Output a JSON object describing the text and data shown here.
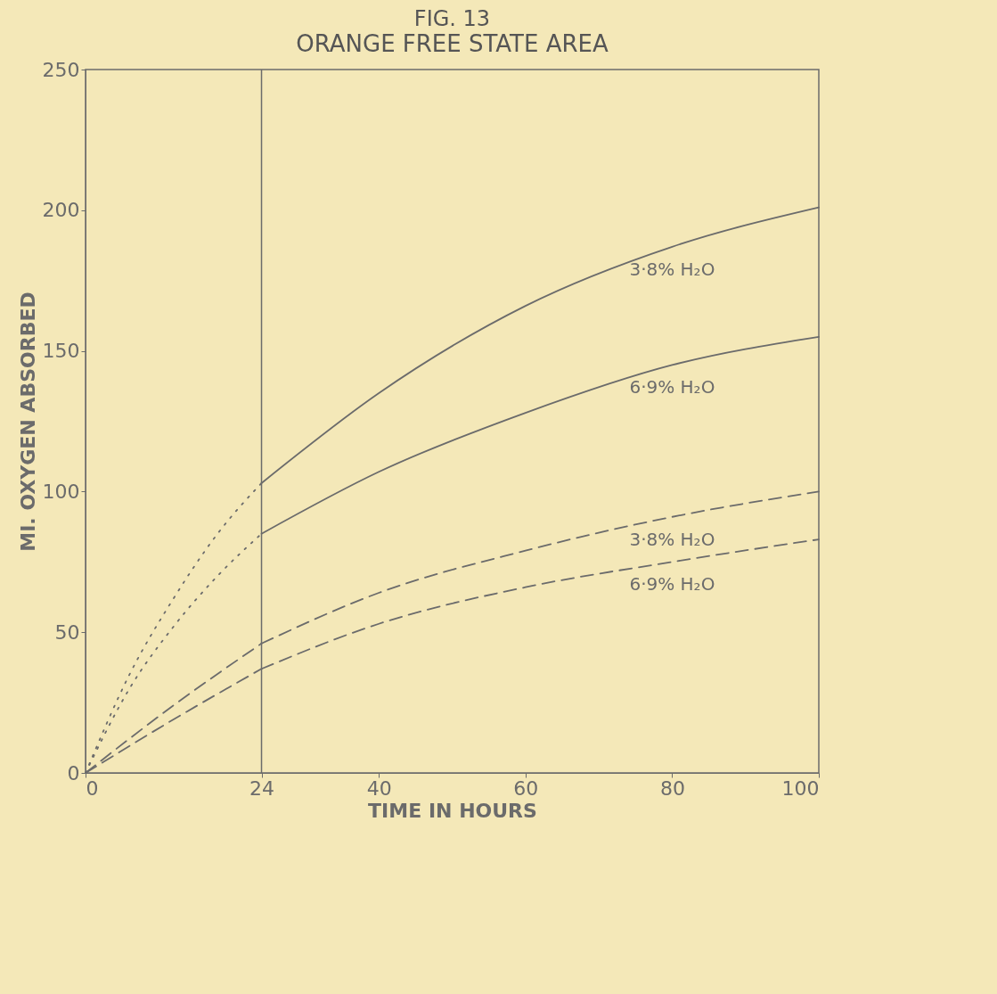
{
  "chart_data": {
    "type": "line",
    "title": "FIG. 13",
    "subtitle": "ORANGE FREE STATE AREA",
    "xlabel": "TIME IN HOURS",
    "ylabel": "MI. OXYGEN ABSORBED",
    "xlim": [
      0,
      100
    ],
    "ylim": [
      0,
      250
    ],
    "xticks": [
      0,
      24,
      40,
      60,
      80,
      100
    ],
    "yticks": [
      0,
      50,
      100,
      150,
      200,
      250
    ],
    "grid": false,
    "marker": "none",
    "ref_lines": [
      {
        "axis": "x",
        "value": 24,
        "color": "#6b6b6b"
      }
    ],
    "series": [
      {
        "name": "3·8% H₂O",
        "color": "#6b6b6b",
        "line_style": "solid",
        "x": [
          24,
          40,
          60,
          80,
          100
        ],
        "values": [
          103,
          135,
          166,
          187,
          201
        ]
      },
      {
        "name": "6·9% H₂O",
        "color": "#6b6b6b",
        "line_style": "solid",
        "x": [
          24,
          40,
          60,
          80,
          100
        ],
        "values": [
          85,
          107,
          128,
          145,
          155
        ]
      },
      {
        "name": "3·8% H₂O",
        "color": "#6b6b6b",
        "line_style": "dashed",
        "x": [
          24,
          40,
          60,
          80,
          100
        ],
        "values": [
          46,
          64,
          79,
          91,
          100
        ]
      },
      {
        "name": "6·9% H₂O",
        "color": "#6b6b6b",
        "line_style": "dashed",
        "x": [
          24,
          40,
          60,
          80,
          100
        ],
        "values": [
          37,
          53,
          66,
          75,
          83
        ]
      },
      {
        "color": "#6b6b6b",
        "line_style": "dotted",
        "x": [
          0,
          6,
          12,
          18,
          24
        ],
        "values": [
          0,
          35,
          62,
          85,
          103
        ]
      },
      {
        "color": "#6b6b6b",
        "line_style": "dotted",
        "x": [
          0,
          6,
          12,
          18,
          24
        ],
        "values": [
          0,
          30,
          52,
          70,
          85
        ]
      },
      {
        "color": "#6b6b6b",
        "line_style": "dashed",
        "x": [
          0,
          12,
          24
        ],
        "values": [
          0,
          24,
          46
        ]
      },
      {
        "color": "#6b6b6b",
        "line_style": "dashed",
        "x": [
          0,
          12,
          24
        ],
        "values": [
          0,
          19,
          37
        ]
      }
    ]
  }
}
